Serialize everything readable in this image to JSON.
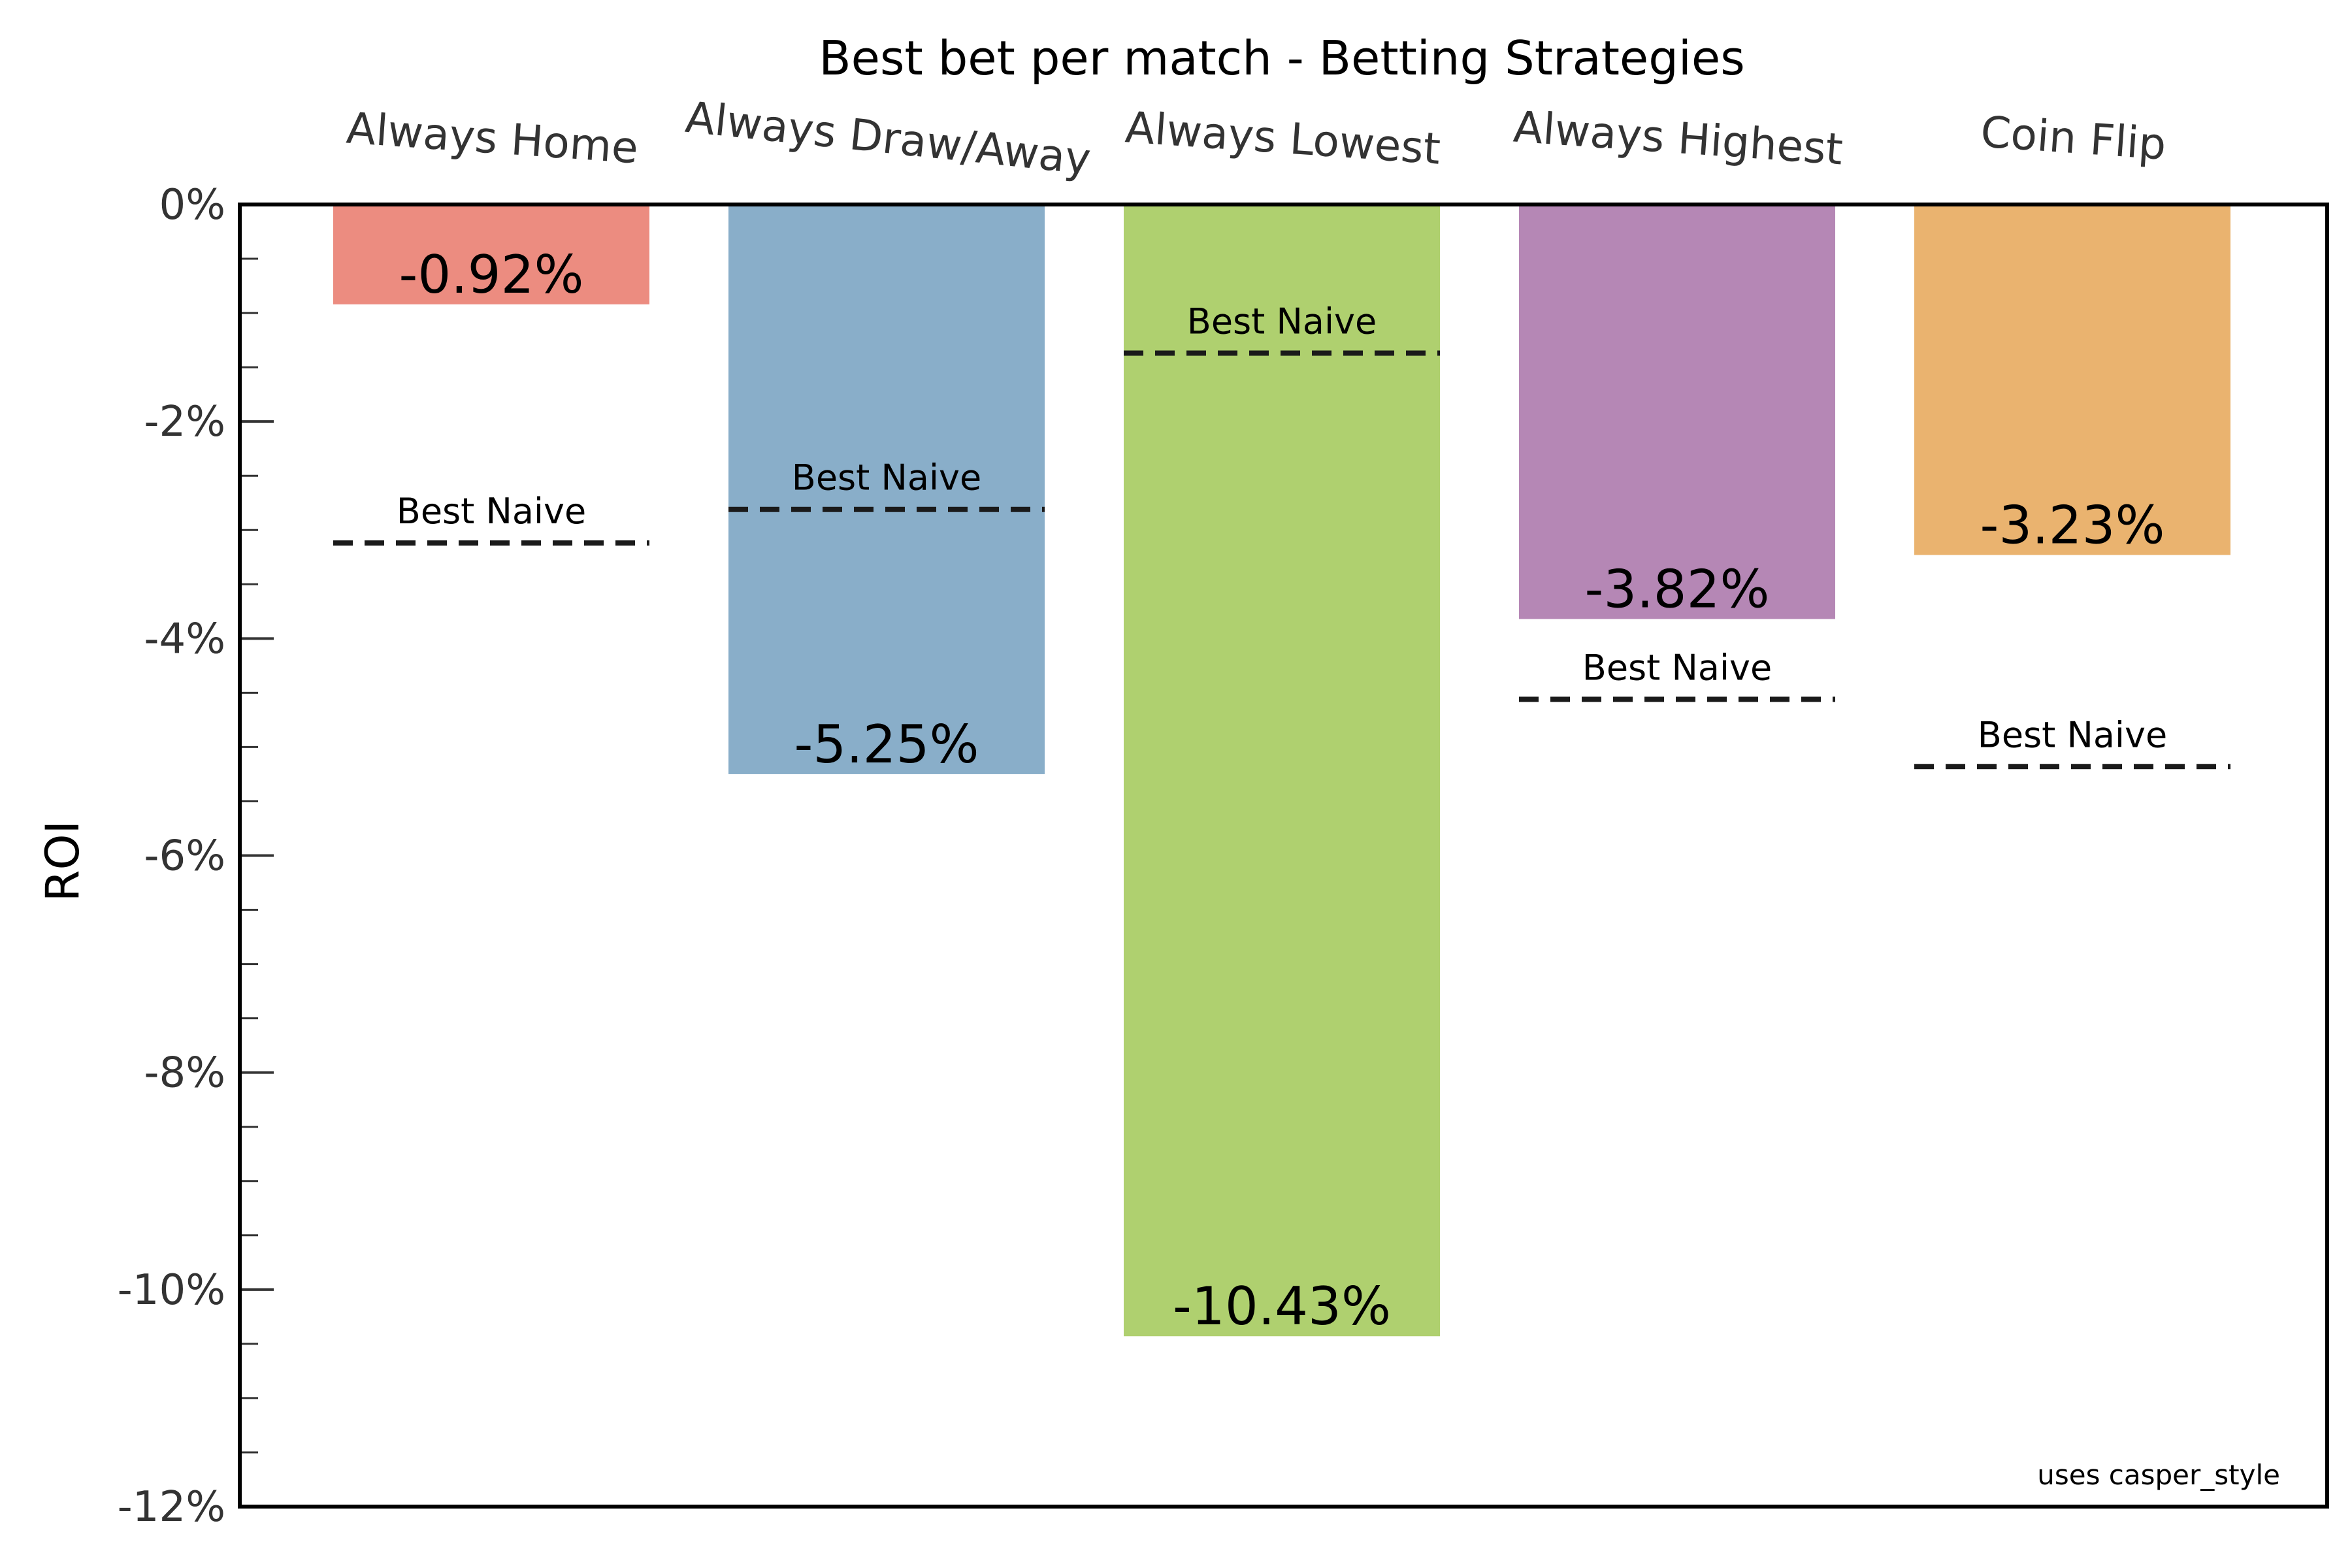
{
  "chart_data": {
    "type": "bar",
    "title": "Best bet per match - Betting Strategies",
    "ylabel": "ROI",
    "xlabel": "",
    "categories": [
      "Always Home",
      "Always Draw/Away",
      "Always Lowest",
      "Always Highest",
      "Coin Flip"
    ],
    "values": [
      -0.92,
      -5.25,
      -10.43,
      -3.82,
      -3.23
    ],
    "value_labels": [
      "-0.92%",
      "-5.25%",
      "-10.43%",
      "-3.82%",
      "-3.23%"
    ],
    "colors": [
      "#EC8C80",
      "#89AEC9",
      "#AFD06F",
      "#B587B5",
      "#EAB36F"
    ],
    "best_naive": {
      "label": "Best Naive",
      "values": [
        -3.12,
        -2.81,
        -1.37,
        -4.56,
        -5.18
      ]
    },
    "ylim": [
      -12,
      0
    ],
    "yticks": [
      0,
      -2,
      -4,
      -6,
      -8,
      -10,
      -12
    ],
    "ytick_labels": [
      "0%",
      "-2%",
      "-4%",
      "-6%",
      "-8%",
      "-10%",
      "-12%"
    ],
    "minor_tick_step": 0.5,
    "category_labels_position": "top",
    "category_label_rotation_deg": [
      4,
      6,
      4,
      4,
      4
    ],
    "grid": false,
    "legend": "none",
    "footnote": "uses casper_style"
  }
}
